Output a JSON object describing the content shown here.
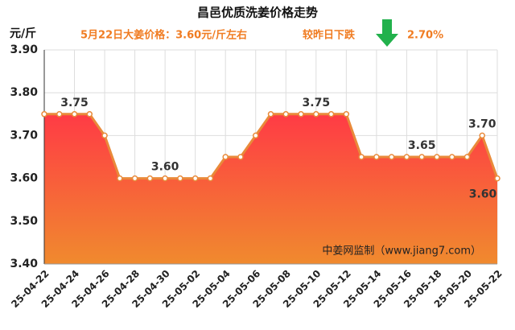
{
  "chart_data": {
    "type": "area",
    "title": "昌邑优质洗姜价格走势",
    "subtitle": "5月22日大姜价格：3.60元/斤左右",
    "change_text": "较昨日下跌",
    "change_value": "2.70%",
    "y_axis_label": "元/斤",
    "annotation": "中姜网监制（www.jiang7.com）",
    "categories": [
      "25-04-22",
      null,
      "25-04-24",
      null,
      "25-04-26",
      null,
      "25-04-28",
      null,
      "25-04-30",
      null,
      "25-05-02",
      null,
      "25-05-04",
      null,
      "25-05-06",
      null,
      "25-05-08",
      null,
      "25-05-10",
      null,
      "25-05-12",
      null,
      "25-05-14",
      null,
      "25-05-16",
      null,
      "25-05-18",
      null,
      "25-05-20",
      null,
      "25-05-22"
    ],
    "values": [
      3.75,
      3.75,
      3.75,
      3.75,
      3.7,
      3.6,
      3.6,
      3.6,
      3.6,
      3.6,
      3.6,
      3.6,
      3.65,
      3.65,
      3.7,
      3.75,
      3.75,
      3.75,
      3.75,
      3.75,
      3.75,
      3.65,
      3.65,
      3.65,
      3.65,
      3.65,
      3.65,
      3.65,
      3.65,
      3.7,
      3.6
    ],
    "value_labels": [
      null,
      null,
      "3.75",
      null,
      null,
      null,
      null,
      null,
      "3.60",
      null,
      null,
      null,
      null,
      null,
      null,
      null,
      null,
      null,
      "3.75",
      null,
      null,
      null,
      null,
      null,
      null,
      "3.65",
      null,
      null,
      null,
      "3.70",
      "3.60"
    ],
    "color": "#e98a3a",
    "ylim": [
      3.4,
      3.9
    ],
    "yticks": [
      {
        "value": 3.4,
        "label": "3.40"
      },
      {
        "value": 3.5,
        "label": "3.50"
      },
      {
        "value": 3.6,
        "label": "3.60"
      },
      {
        "value": 3.7,
        "label": "3.70"
      },
      {
        "value": 3.8,
        "label": "3.80"
      },
      {
        "value": 3.9,
        "label": "3.90"
      }
    ],
    "grid": true
  }
}
